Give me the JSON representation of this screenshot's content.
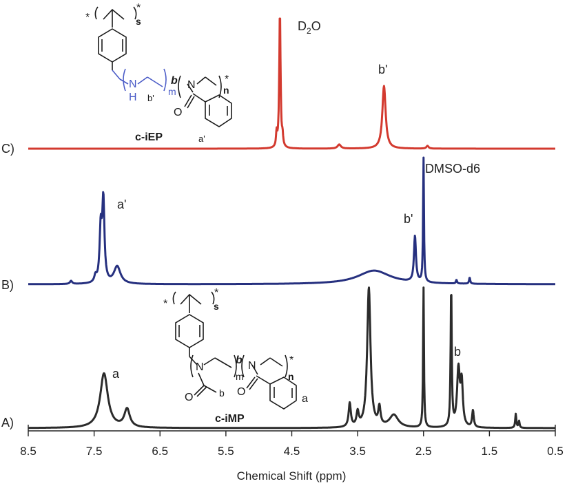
{
  "chart_data": {
    "type": "line",
    "xlabel": "Chemical Shift (ppm)",
    "xlim": [
      8.5,
      0.5
    ],
    "x_reversed": true,
    "xticks": [
      8.5,
      7.5,
      6.5,
      5.5,
      4.5,
      3.5,
      2.5,
      1.5,
      0.5
    ],
    "xtick_labels": [
      "8.5",
      "7.5",
      "6.5",
      "5.5",
      "4.5",
      "3.5",
      "2.5",
      "1.5",
      "0.5"
    ],
    "colors": {
      "A": "#2b2b2b",
      "B": "#26307f",
      "C": "#d33a2f"
    },
    "series": [
      {
        "name": "C)",
        "peaks": [
          {
            "shift": 4.68,
            "height": 1.0,
            "width": 0.012
          },
          {
            "shift": 4.73,
            "height": 0.1,
            "width": 0.01
          },
          {
            "shift": 4.64,
            "height": 0.07,
            "width": 0.01
          },
          {
            "shift": 3.78,
            "height": 0.03,
            "width": 0.03
          },
          {
            "shift": 3.1,
            "height": 0.46,
            "width": 0.03
          },
          {
            "shift": 2.44,
            "height": 0.02,
            "width": 0.02
          }
        ]
      },
      {
        "name": "B)",
        "peaks": [
          {
            "shift": 7.85,
            "height": 0.025,
            "width": 0.02
          },
          {
            "shift": 7.48,
            "height": 0.05,
            "width": 0.02
          },
          {
            "shift": 7.4,
            "height": 0.42,
            "width": 0.02
          },
          {
            "shift": 7.36,
            "height": 0.65,
            "width": 0.02
          },
          {
            "shift": 7.15,
            "height": 0.14,
            "width": 0.06
          },
          {
            "shift": 3.25,
            "height": 0.11,
            "width": 0.3
          },
          {
            "shift": 2.63,
            "height": 0.37,
            "width": 0.018
          },
          {
            "shift": 2.5,
            "height": 1.0,
            "width": 0.008
          },
          {
            "shift": 2.0,
            "height": 0.03,
            "width": 0.01
          },
          {
            "shift": 1.8,
            "height": 0.05,
            "width": 0.01
          }
        ]
      },
      {
        "name": "A)",
        "peaks": [
          {
            "shift": 7.35,
            "height": 0.39,
            "width": 0.07
          },
          {
            "shift": 7.0,
            "height": 0.13,
            "width": 0.05
          },
          {
            "shift": 3.62,
            "height": 0.17,
            "width": 0.02
          },
          {
            "shift": 3.5,
            "height": 0.1,
            "width": 0.02
          },
          {
            "shift": 3.33,
            "height": 1.0,
            "width": 0.03
          },
          {
            "shift": 3.17,
            "height": 0.13,
            "width": 0.02
          },
          {
            "shift": 2.95,
            "height": 0.09,
            "width": 0.08
          },
          {
            "shift": 2.5,
            "height": 1.0,
            "width": 0.008
          },
          {
            "shift": 2.08,
            "height": 1.0,
            "width": 0.01
          },
          {
            "shift": 1.97,
            "height": 0.41,
            "width": 0.025
          },
          {
            "shift": 1.92,
            "height": 0.3,
            "width": 0.02
          },
          {
            "shift": 1.75,
            "height": 0.12,
            "width": 0.015
          },
          {
            "shift": 1.1,
            "height": 0.1,
            "width": 0.01
          },
          {
            "shift": 1.05,
            "height": 0.05,
            "width": 0.01
          }
        ]
      }
    ],
    "annotations": {
      "C": [
        {
          "text": "D2O",
          "shift": 4.68
        },
        {
          "text": "b'",
          "shift": 3.1
        }
      ],
      "B": [
        {
          "text": "a'",
          "shift": 7.36
        },
        {
          "text": "b'",
          "shift": 2.63
        },
        {
          "text": "DMSO-d6",
          "shift": 2.5
        }
      ],
      "A": [
        {
          "text": "a",
          "shift": 7.35
        },
        {
          "text": "b",
          "shift": 1.97
        }
      ]
    },
    "structures": [
      {
        "name": "c-iEP",
        "labels": [
          "*",
          "*",
          "s",
          "N",
          "H",
          "b'",
          "m",
          "b",
          "N",
          "n",
          "*",
          "O",
          "a'"
        ]
      },
      {
        "name": "c-iMP",
        "labels": [
          "*",
          "*",
          "s",
          "N",
          "b",
          "m",
          "b",
          "N",
          "n",
          "*",
          "O",
          "O",
          "a"
        ]
      }
    ]
  }
}
